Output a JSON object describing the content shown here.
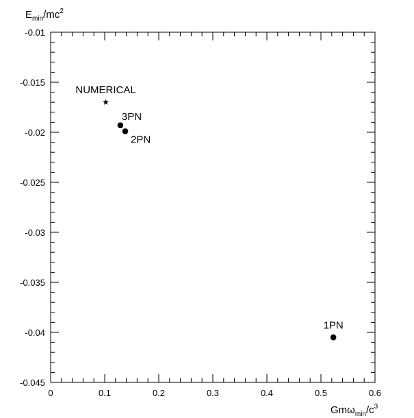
{
  "chart_data": {
    "type": "scatter",
    "xlim": [
      0,
      0.6
    ],
    "ylim": [
      -0.045,
      -0.01
    ],
    "grid": false,
    "xlabel": {
      "base": "Gmω",
      "sub": "min",
      "tail": "/c",
      "sup": "3"
    },
    "ylabel": {
      "base": "E",
      "sub": "min",
      "tail": "/mc",
      "sup": "2"
    },
    "x_ticks": [
      {
        "value": 0,
        "label": "0"
      },
      {
        "value": 0.1,
        "label": "0.1"
      },
      {
        "value": 0.2,
        "label": "0.2"
      },
      {
        "value": 0.3,
        "label": "0.3"
      },
      {
        "value": 0.4,
        "label": "0.4"
      },
      {
        "value": 0.5,
        "label": "0.5"
      },
      {
        "value": 0.6,
        "label": "0.6"
      }
    ],
    "y_ticks": [
      {
        "value": -0.01,
        "label": "-0.01"
      },
      {
        "value": -0.015,
        "label": "-0.015"
      },
      {
        "value": -0.02,
        "label": "-0.02"
      },
      {
        "value": -0.025,
        "label": "-0.025"
      },
      {
        "value": -0.03,
        "label": "-0.03"
      },
      {
        "value": -0.035,
        "label": "-0.035"
      },
      {
        "value": -0.04,
        "label": "-0.04"
      },
      {
        "value": -0.045,
        "label": "-0.045"
      }
    ],
    "points": [
      {
        "label": "NUMERICAL",
        "x": 0.102,
        "y": -0.017,
        "marker": "star",
        "label_pos": "above"
      },
      {
        "label": "3PN",
        "x": 0.129,
        "y": -0.0193,
        "marker": "circle",
        "label_pos": "above-right"
      },
      {
        "label": "2PN",
        "x": 0.138,
        "y": -0.0199,
        "marker": "circle",
        "label_pos": "below-right"
      },
      {
        "label": "1PN",
        "x": 0.523,
        "y": -0.0405,
        "marker": "circle",
        "label_pos": "above"
      }
    ]
  }
}
